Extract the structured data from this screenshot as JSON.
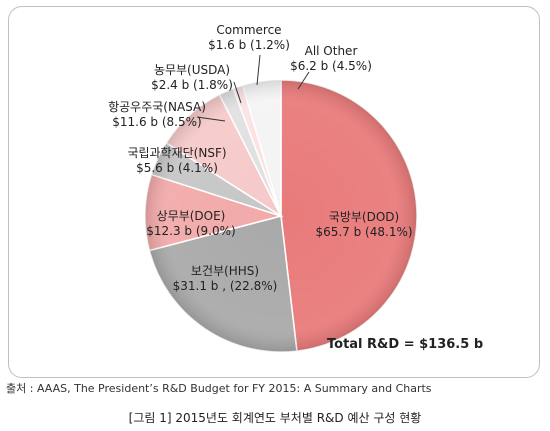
{
  "chart_data": {
    "type": "pie",
    "title": "",
    "slices": [
      {
        "label": "국방부(DOD)",
        "value_text": "$65.7 b (48.1%)",
        "value": 65.7,
        "percent": 48.1,
        "color": "#e97a7a"
      },
      {
        "label": "보건부(HHS)",
        "value_text": "$31.1 b , (22.8%)",
        "value": 31.1,
        "percent": 22.8,
        "color": "#a9a9a9"
      },
      {
        "label": "상무부(DOE)",
        "value_text": "$12.3 b (9.0%)",
        "value": 12.3,
        "percent": 9.0,
        "color": "#f2a9a9"
      },
      {
        "label": "국립과학재단(NSF)",
        "value_text": "$5.6 b (4.1%)",
        "value": 5.6,
        "percent": 4.1,
        "color": "#c6c6c6"
      },
      {
        "label": "항공우주국(NASA)",
        "value_text": "$11.6 b (8.5%)",
        "value": 11.6,
        "percent": 8.5,
        "color": "#f6c9c9"
      },
      {
        "label": "농무부(USDA)",
        "value_text": "$2.4 b (1.8%)",
        "value": 2.4,
        "percent": 1.8,
        "color": "#e0e0e0"
      },
      {
        "label": "Commerce",
        "value_text": "$1.6 b (1.2%)",
        "value": 1.6,
        "percent": 1.2,
        "color": "#fbe2e2"
      },
      {
        "label": "All Other",
        "value_text": "$6.2 b (4.5%)",
        "value": 6.2,
        "percent": 4.5,
        "color": "#f4f4f4"
      }
    ],
    "total_label": "Total R&D = $136.5 b"
  },
  "source": "출처 : AAAS, The President’s R&D Budget for FY 2015: A Summary and Charts",
  "caption": "[그림 1] 2015년도 회계연도 부처별 R&D 예산 구성 현황"
}
